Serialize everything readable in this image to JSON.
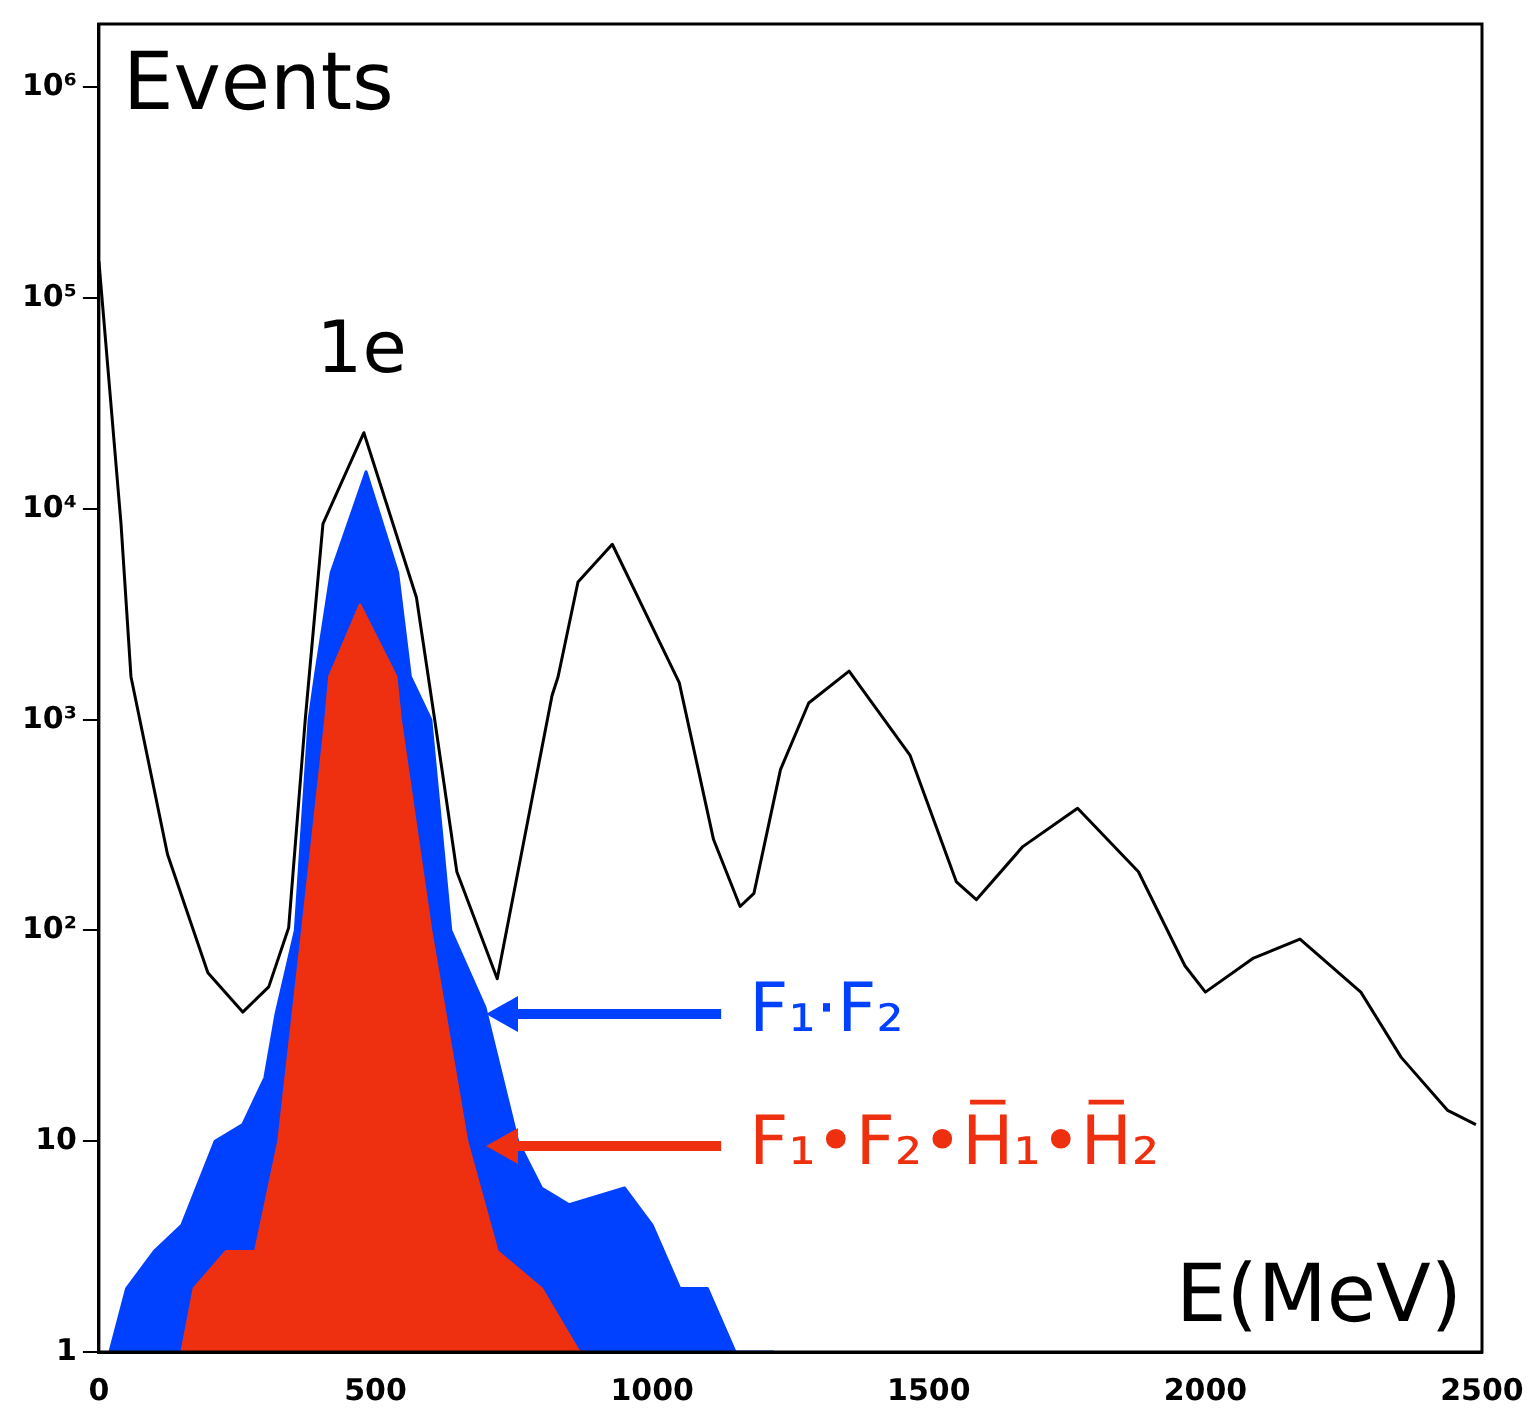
{
  "chart_data": {
    "type": "line",
    "ylabel": "Events",
    "xlabel": "E(MeV)",
    "log": "y",
    "grid": false,
    "legend": "bottom",
    "marker": "none",
    "xlim": [
      0,
      2500
    ],
    "xticks": [
      0,
      500,
      1000,
      1500,
      2000,
      2500
    ],
    "ylim": [
      1,
      2000000
    ],
    "yticks": [
      1,
      10,
      {
        "value": 100,
        "label": "10²"
      },
      {
        "value": 1000,
        "label": "10³"
      },
      {
        "value": 10000,
        "label": "10⁴"
      },
      {
        "value": 100000,
        "label": "10⁵"
      },
      {
        "value": 1000000,
        "label": "10⁶"
      }
    ],
    "annotations": [
      "1e"
    ],
    "series": [
      {
        "color": "#000000",
        "x": [
          0,
          40,
          58,
          124,
          197,
          260,
          307,
          343,
          373,
          405,
          479,
          574,
          607,
          647,
          720,
          819,
          830,
          866,
          928,
          1049,
          1111,
          1159,
          1184,
          1232,
          1283,
          1356,
          1466,
          1550,
          1586,
          1670,
          1769,
          1879,
          1963,
          2000,
          2087,
          2171,
          2281,
          2354,
          2438,
          2489
        ],
        "values": [
          150000,
          8500,
          1600,
          230,
          63,
          41,
          54,
          103,
          1000,
          8500,
          23000,
          3800,
          1000,
          190,
          59,
          1300,
          1600,
          4500,
          6800,
          1500,
          270,
          130,
          150,
          580,
          1200,
          1700,
          680,
          170,
          140,
          250,
          380,
          190,
          68,
          51,
          74,
          91,
          51,
          25,
          14,
          12
        ]
      },
      {
        "type": "area",
        "name": "F₁·F₂",
        "color": "#0040ff",
        "x": [
          20,
          50,
          100,
          150,
          210,
          260,
          300,
          320,
          355,
          380,
          391,
          420,
          483,
          540,
          563,
          600,
          636,
          698,
          757,
          800,
          850,
          950,
          1000,
          1050,
          1100,
          1150,
          1220
        ],
        "values": [
          1,
          2,
          3,
          4,
          10,
          12,
          20,
          40,
          100,
          1000,
          1600,
          5000,
          15000,
          5000,
          1600,
          1000,
          100,
          43,
          10,
          6,
          5,
          6,
          4,
          2,
          2,
          1,
          1
        ]
      },
      {
        "type": "area",
        "name": "F₁•F₂•H̅₁•H̅₂",
        "color": "#ee3010",
        "x": [
          150,
          172,
          230,
          283,
          325,
          368,
          410,
          417,
          472,
          537,
          545,
          600,
          665,
          720,
          800,
          868,
          880
        ],
        "values": [
          1,
          2,
          3,
          3,
          10,
          100,
          1000,
          1600,
          3500,
          1600,
          1000,
          100,
          10,
          3,
          2,
          1,
          1
        ]
      }
    ]
  }
}
